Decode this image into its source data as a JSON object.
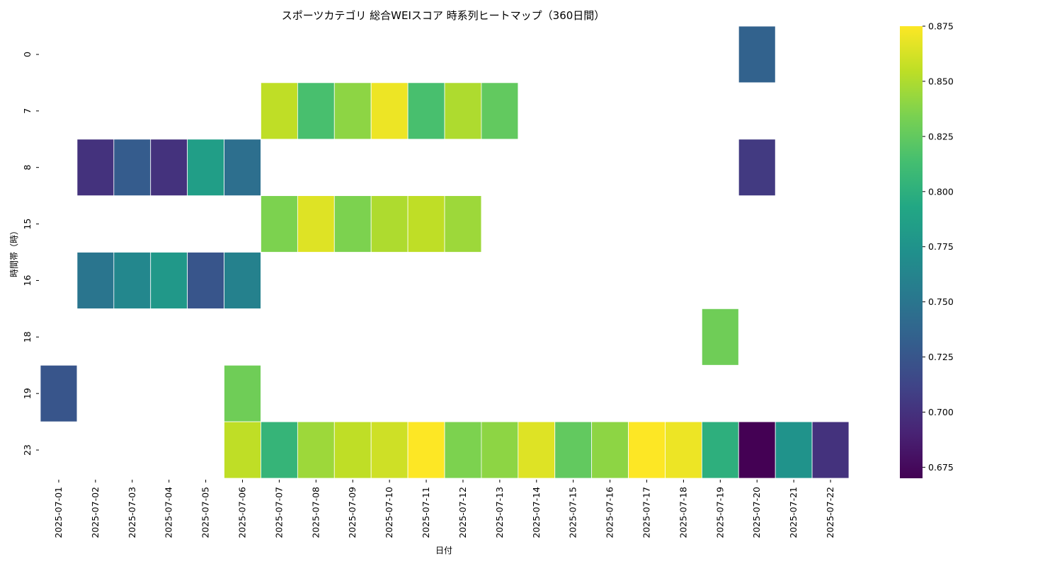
{
  "chart_data": {
    "type": "heatmap",
    "title": "スポーツカテゴリ 総合WEIスコア 時系列ヒートマップ（360日間）",
    "xlabel": "日付",
    "ylabel": "時間帯（時）",
    "x": [
      "2025-07-01",
      "2025-07-02",
      "2025-07-03",
      "2025-07-04",
      "2025-07-05",
      "2025-07-06",
      "2025-07-07",
      "2025-07-08",
      "2025-07-09",
      "2025-07-10",
      "2025-07-11",
      "2025-07-12",
      "2025-07-13",
      "2025-07-14",
      "2025-07-15",
      "2025-07-16",
      "2025-07-17",
      "2025-07-18",
      "2025-07-19",
      "2025-07-20",
      "2025-07-21",
      "2025-07-22"
    ],
    "y": [
      "0",
      "7",
      "8",
      "15",
      "16",
      "18",
      "19",
      "23"
    ],
    "values": [
      [
        null,
        null,
        null,
        null,
        null,
        null,
        null,
        null,
        null,
        null,
        null,
        null,
        null,
        null,
        null,
        null,
        null,
        null,
        null,
        0.735,
        null,
        null
      ],
      [
        null,
        null,
        null,
        null,
        null,
        null,
        0.855,
        0.815,
        0.84,
        0.87,
        0.815,
        0.85,
        0.825,
        null,
        null,
        null,
        null,
        null,
        null,
        null,
        null,
        null
      ],
      [
        null,
        0.7,
        0.73,
        0.7,
        0.785,
        0.745,
        null,
        null,
        null,
        null,
        null,
        null,
        null,
        null,
        null,
        null,
        null,
        null,
        null,
        0.705,
        null,
        null
      ],
      [
        null,
        null,
        null,
        null,
        null,
        null,
        0.835,
        0.865,
        0.835,
        0.85,
        0.855,
        0.845,
        null,
        null,
        null,
        null,
        null,
        null,
        null,
        null,
        null,
        null
      ],
      [
        null,
        0.75,
        0.765,
        0.78,
        0.725,
        0.76,
        null,
        null,
        null,
        null,
        null,
        null,
        null,
        null,
        null,
        null,
        null,
        null,
        null,
        null,
        null,
        null
      ],
      [
        null,
        null,
        null,
        null,
        null,
        null,
        null,
        null,
        null,
        null,
        null,
        null,
        null,
        null,
        null,
        null,
        null,
        null,
        0.83,
        null,
        null,
        null
      ],
      [
        0.725,
        null,
        null,
        null,
        null,
        0.83,
        null,
        null,
        null,
        null,
        null,
        null,
        null,
        null,
        null,
        null,
        null,
        null,
        null,
        null,
        null,
        null
      ],
      [
        null,
        null,
        null,
        null,
        null,
        0.855,
        0.805,
        0.845,
        0.855,
        0.86,
        0.875,
        0.835,
        0.84,
        0.865,
        0.825,
        0.84,
        0.875,
        0.87,
        0.8,
        0.67,
        0.775,
        0.7
      ]
    ],
    "colorbar": {
      "min": 0.67,
      "max": 0.875,
      "ticks": [
        "0.675",
        "0.700",
        "0.725",
        "0.750",
        "0.775",
        "0.800",
        "0.825",
        "0.850",
        "0.875"
      ],
      "colormap": "viridis"
    }
  }
}
